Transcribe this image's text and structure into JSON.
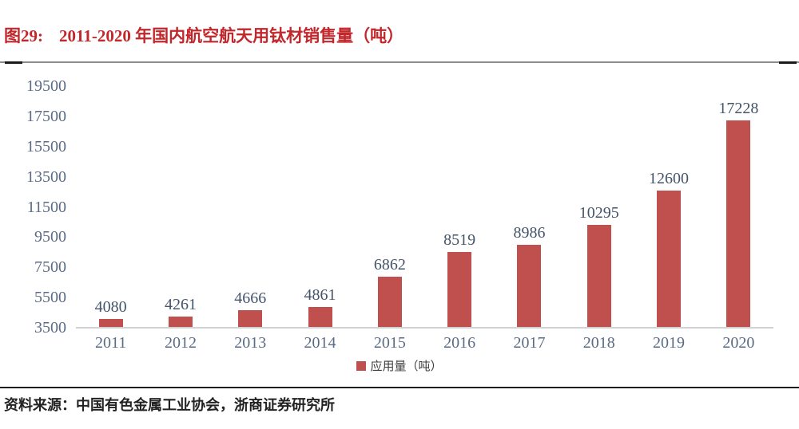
{
  "figure": {
    "label": "图29:",
    "title": "2011-2020 年国内航空航天用钛材销售量（吨）"
  },
  "legend": {
    "label": "应用量（吨）"
  },
  "source": {
    "text": "资料来源：中国有色金属工业协会，浙商证券研究所"
  },
  "colors": {
    "bar": "#C0504D",
    "title": "#C2272B",
    "axis_label": "#5A6B85",
    "data_label": "#44546A",
    "axis_line": "#D2D2D2"
  },
  "chart_data": {
    "type": "bar",
    "title": "2011-2020 年国内航空航天用钛材销售量（吨）",
    "categories": [
      "2011",
      "2012",
      "2013",
      "2014",
      "2015",
      "2016",
      "2017",
      "2018",
      "2019",
      "2020"
    ],
    "values": [
      4080,
      4261,
      4666,
      4861,
      6862,
      8519,
      8986,
      10295,
      12600,
      17228
    ],
    "series_name": "应用量（吨）",
    "xlabel": "",
    "ylabel": "",
    "ylim": [
      3500,
      19500
    ],
    "yticks": [
      3500,
      5500,
      7500,
      9500,
      11500,
      13500,
      15500,
      17500,
      19500
    ],
    "grid": false,
    "legend_position": "bottom",
    "data_labels": true
  }
}
